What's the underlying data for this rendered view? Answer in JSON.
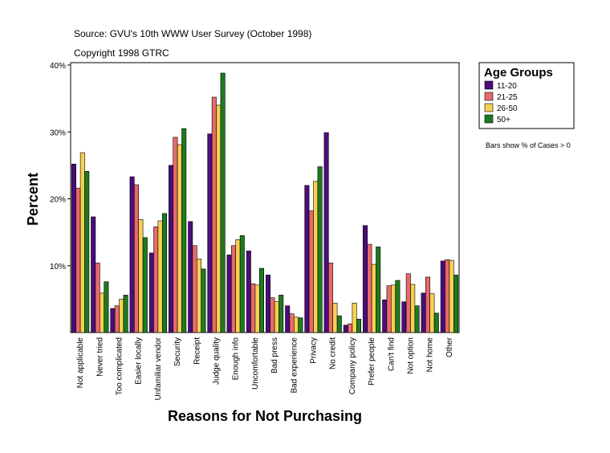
{
  "chart_data": {
    "type": "bar",
    "source": "Source: GVU's 10th WWW User Survey (October 1998)",
    "copyright": "Copyright 1998 GTRC",
    "annotation": "Bars show % of Cases > 0",
    "legend_title": "Age Groups",
    "x_label": "Reasons for Not Purchasing",
    "y_label": "Percent",
    "categories": [
      "Not applicable",
      "Never tried",
      "Too complicated",
      "Easier locally",
      "Unfamiliar vendor",
      "Security",
      "Receipt",
      "Judge quality",
      "Enough info",
      "Uncomfortable",
      "Bad press",
      "Bad experience",
      "Privacy",
      "No credit",
      "Company policy",
      "Prefer people",
      "Can't find",
      "Not option",
      "Not home",
      "Other"
    ],
    "series": [
      {
        "name": "11-20",
        "color": "#4b0c7c",
        "values": [
          25.2,
          17.3,
          3.6,
          23.3,
          11.9,
          25.0,
          16.6,
          29.7,
          11.6,
          12.2,
          8.6,
          4.0,
          22.0,
          29.9,
          1.1,
          16.0,
          4.9,
          4.6,
          5.9,
          10.7
        ]
      },
      {
        "name": "21-25",
        "color": "#e86a6a",
        "values": [
          21.6,
          10.4,
          4.0,
          22.1,
          15.8,
          29.2,
          13.0,
          35.2,
          13.0,
          7.3,
          5.2,
          2.8,
          18.2,
          10.4,
          1.3,
          13.2,
          7.0,
          8.8,
          8.3,
          10.9
        ]
      },
      {
        "name": "26-50",
        "color": "#f8d050",
        "values": [
          26.9,
          5.9,
          5.0,
          16.9,
          16.7,
          28.1,
          11.0,
          34.0,
          13.9,
          7.1,
          4.6,
          2.3,
          22.6,
          4.4,
          4.4,
          10.2,
          7.1,
          7.2,
          5.8,
          10.8
        ]
      },
      {
        "name": "50+",
        "color": "#1e7a1e",
        "values": [
          24.1,
          7.6,
          5.6,
          14.2,
          17.8,
          30.5,
          9.5,
          38.8,
          14.5,
          9.6,
          5.6,
          2.2,
          24.8,
          2.5,
          2.0,
          12.8,
          7.8,
          4.0,
          2.9,
          8.6
        ]
      }
    ],
    "ylim": [
      0,
      40
    ],
    "yticks": [
      {
        "value": 10,
        "label": "10%"
      },
      {
        "value": 20,
        "label": "20%"
      },
      {
        "value": 30,
        "label": "30%"
      },
      {
        "value": 40,
        "label": "40%"
      }
    ]
  }
}
